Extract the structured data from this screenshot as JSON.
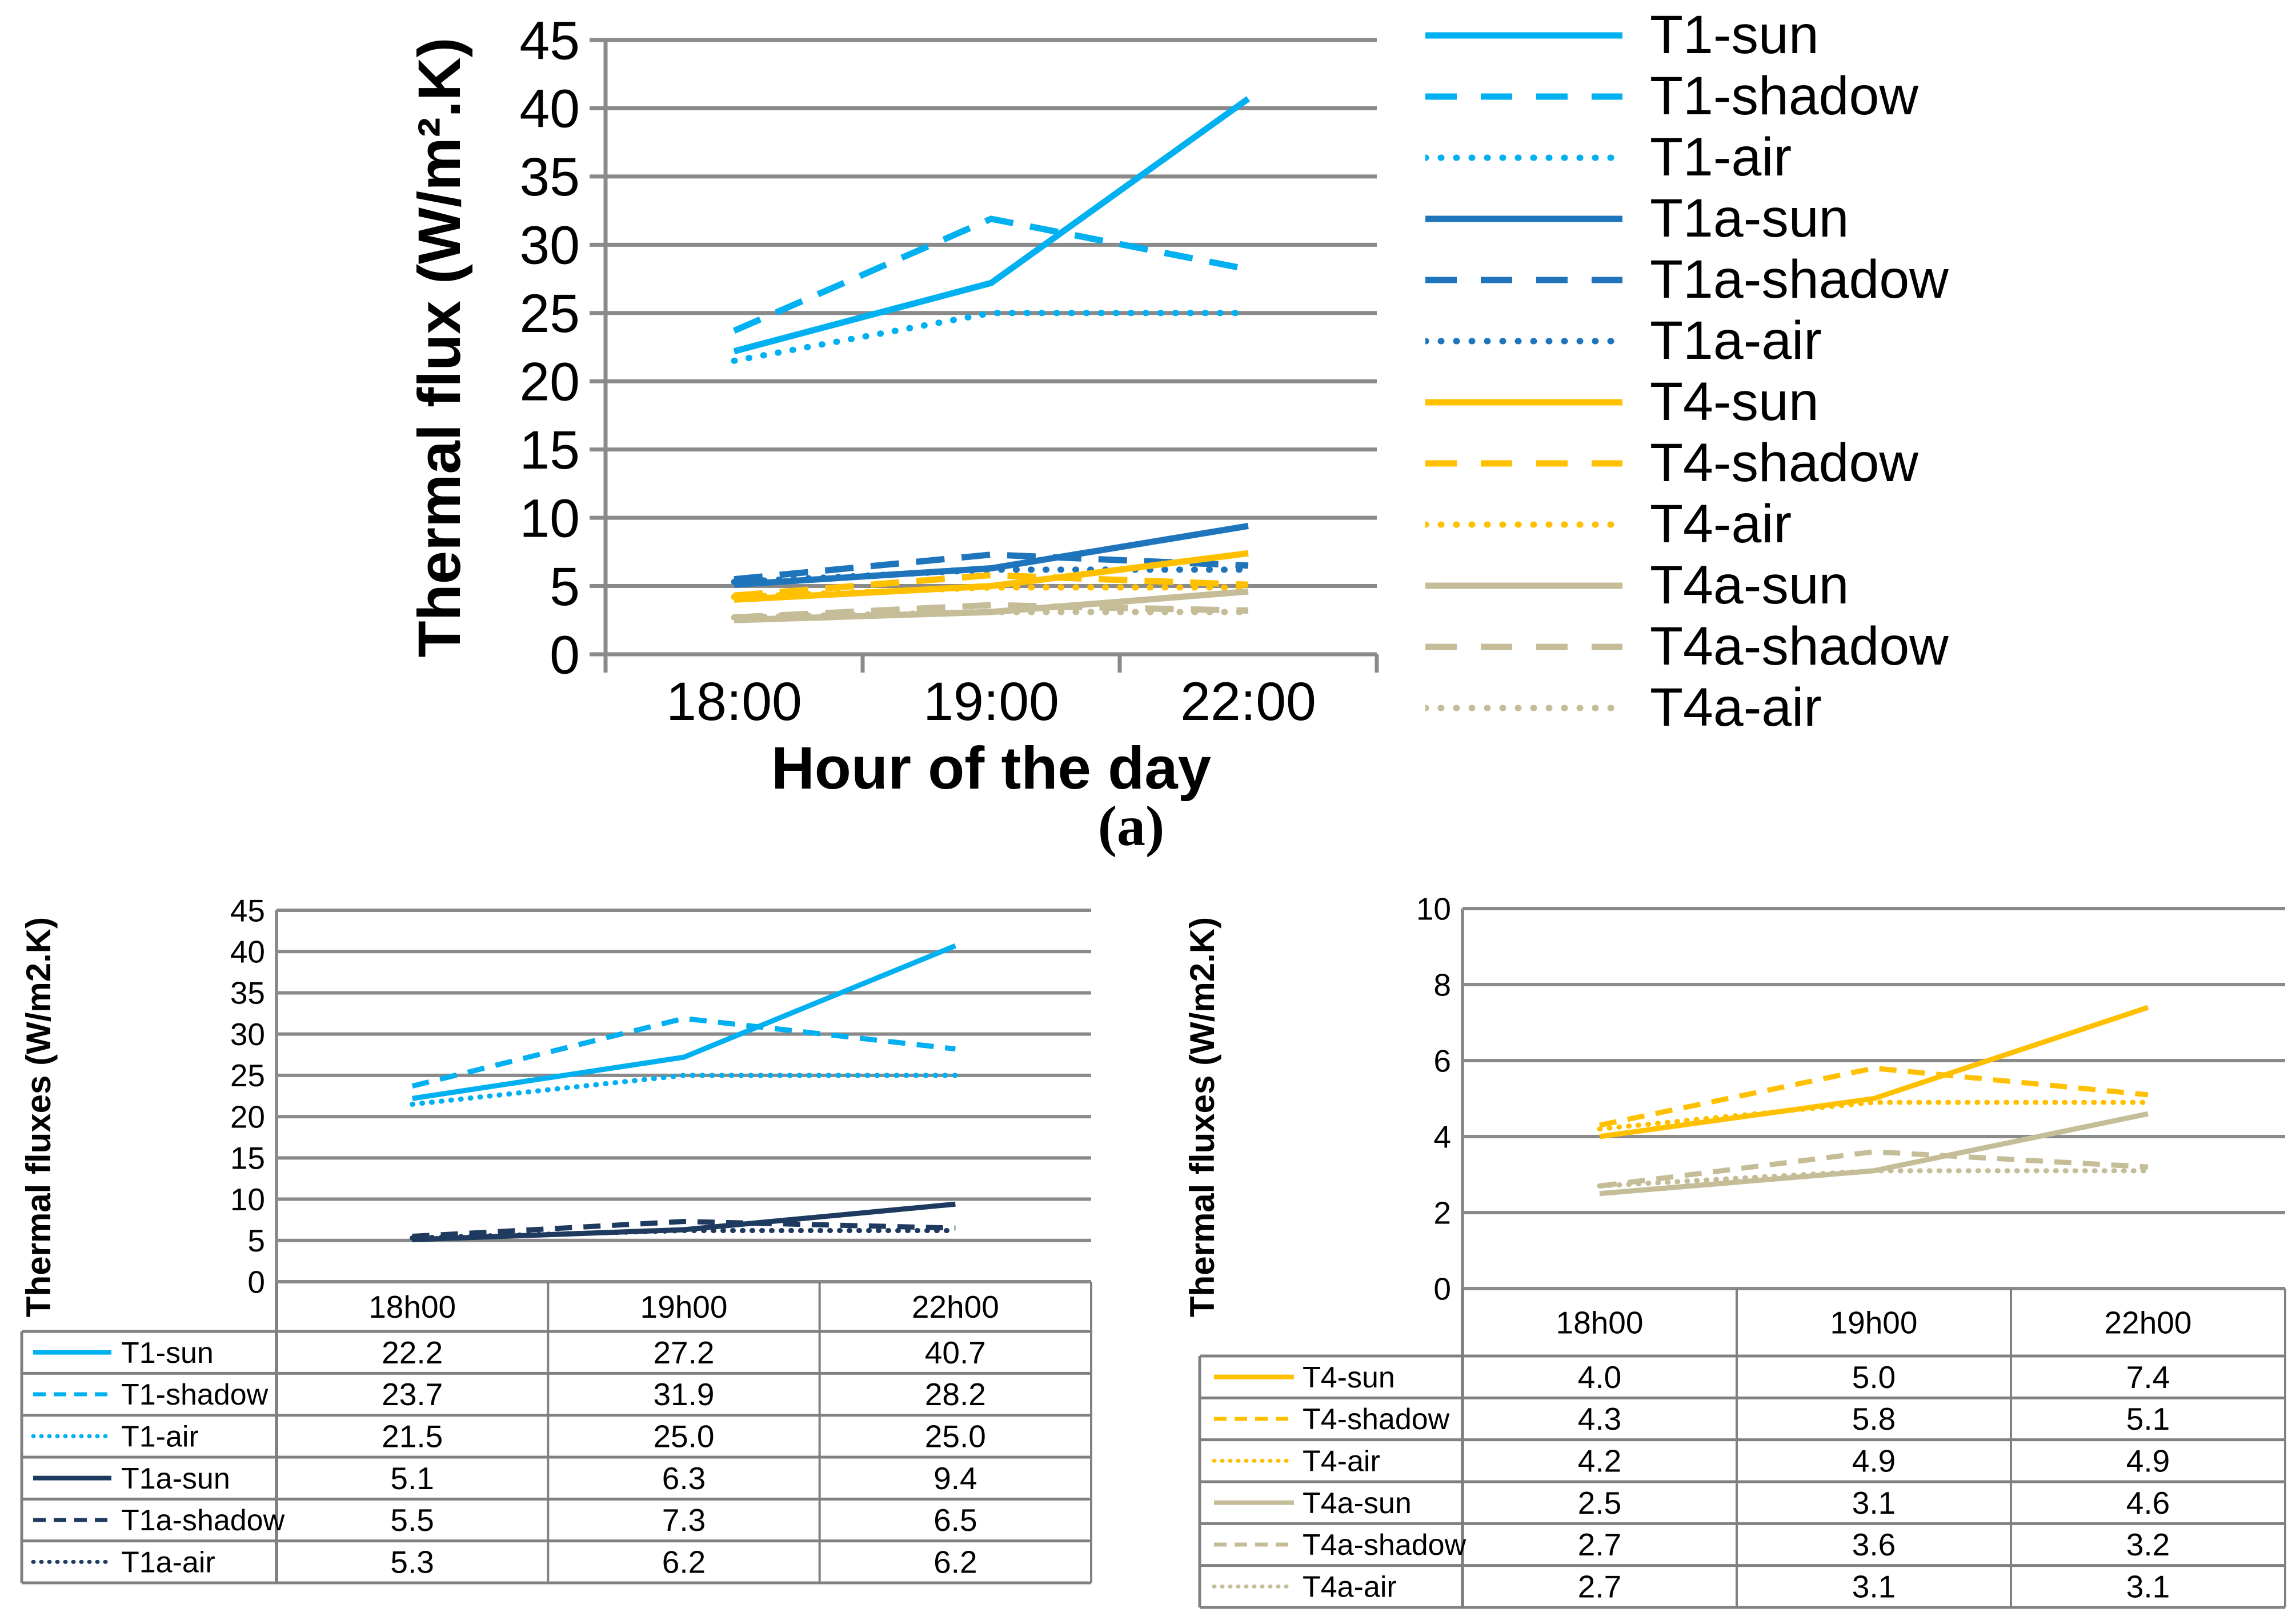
{
  "caption_a": "(a)",
  "colors": {
    "t1": "#00B0F0",
    "t1a_top": "#1F75BC",
    "t1a_table": "#1F3A5F",
    "t4": "#FFC000",
    "t4a": "#C4BD97",
    "grid": "#8A8A8A",
    "table_border": "#808080",
    "text": "#000000"
  },
  "chart_data": [
    {
      "id": "chart-a",
      "type": "line",
      "title": "",
      "xlabel": "Hour of the day",
      "ylabel": "Thermal flux (W/m²().K)",
      "ylabel_display": "Thermal flux (W/m².K)",
      "categories": [
        "18:00",
        "19:00",
        "22:00"
      ],
      "ylim": [
        0,
        45
      ],
      "ytick_step": 5,
      "grid": true,
      "legend_position": "right",
      "series": [
        {
          "name": "T1-sun",
          "color": "#00B0F0",
          "style": "solid",
          "values": [
            22.2,
            27.2,
            40.7
          ]
        },
        {
          "name": "T1-shadow",
          "color": "#00B0F0",
          "style": "dashed",
          "values": [
            23.7,
            31.9,
            28.2
          ]
        },
        {
          "name": "T1-air",
          "color": "#00B0F0",
          "style": "dotted",
          "values": [
            21.5,
            25.0,
            25.0
          ]
        },
        {
          "name": "T1a-sun",
          "color": "#1F75BC",
          "style": "solid",
          "values": [
            5.1,
            6.3,
            9.4
          ]
        },
        {
          "name": "T1a-shadow",
          "color": "#1F75BC",
          "style": "dashed",
          "values": [
            5.5,
            7.3,
            6.5
          ]
        },
        {
          "name": "T1a-air",
          "color": "#1F75BC",
          "style": "dotted",
          "values": [
            5.3,
            6.2,
            6.2
          ]
        },
        {
          "name": "T4-sun",
          "color": "#FFC000",
          "style": "solid",
          "values": [
            4.0,
            5.0,
            7.4
          ]
        },
        {
          "name": "T4-shadow",
          "color": "#FFC000",
          "style": "dashed",
          "values": [
            4.3,
            5.8,
            5.1
          ]
        },
        {
          "name": "T4-air",
          "color": "#FFC000",
          "style": "dotted",
          "values": [
            4.2,
            4.9,
            4.9
          ]
        },
        {
          "name": "T4a-sun",
          "color": "#C4BD97",
          "style": "solid",
          "values": [
            2.5,
            3.1,
            4.6
          ]
        },
        {
          "name": "T4a-shadow",
          "color": "#C4BD97",
          "style": "dashed",
          "values": [
            2.7,
            3.6,
            3.2
          ]
        },
        {
          "name": "T4a-air",
          "color": "#C4BD97",
          "style": "dotted",
          "values": [
            2.7,
            3.1,
            3.1
          ]
        }
      ]
    },
    {
      "id": "chart-b",
      "type": "line",
      "title": "",
      "xlabel": "",
      "ylabel": "Thermal fluxes (W/m2.K)",
      "categories": [
        "18h00",
        "19h00",
        "22h00"
      ],
      "ylim": [
        0,
        45
      ],
      "ytick_step": 5,
      "grid": true,
      "legend_position": "table-left",
      "table_headers": [
        "",
        "18h00",
        "19h00",
        "22h00"
      ],
      "series": [
        {
          "name": "T1-sun",
          "color": "#00B0F0",
          "style": "solid",
          "values": [
            "22.2",
            "27.2",
            "40.7"
          ]
        },
        {
          "name": "T1-shadow",
          "color": "#00B0F0",
          "style": "dashed",
          "values": [
            "23.7",
            "31.9",
            "28.2"
          ]
        },
        {
          "name": "T1-air",
          "color": "#00B0F0",
          "style": "dotted",
          "values": [
            "21.5",
            "25.0",
            "25.0"
          ]
        },
        {
          "name": "T1a-sun",
          "color": "#1F3A5F",
          "style": "solid",
          "values": [
            "5.1",
            "6.3",
            "9.4"
          ]
        },
        {
          "name": "T1a-shadow",
          "color": "#1F3A5F",
          "style": "dashed",
          "values": [
            "5.5",
            "7.3",
            "6.5"
          ]
        },
        {
          "name": "T1a-air",
          "color": "#1F3A5F",
          "style": "dotted",
          "values": [
            "5.3",
            "6.2",
            "6.2"
          ]
        }
      ]
    },
    {
      "id": "chart-c",
      "type": "line",
      "title": "",
      "xlabel": "",
      "ylabel": "Thermal fluxes (W/m2.K)",
      "categories": [
        "18h00",
        "19h00",
        "22h00"
      ],
      "ylim": [
        0,
        10
      ],
      "ytick_step": 2,
      "grid": true,
      "legend_position": "table-left",
      "table_headers": [
        "",
        "18h00",
        "19h00",
        "22h00"
      ],
      "series": [
        {
          "name": "T4-sun",
          "color": "#FFC000",
          "style": "solid",
          "values": [
            "4.0",
            "5.0",
            "7.4"
          ]
        },
        {
          "name": "T4-shadow",
          "color": "#FFC000",
          "style": "dashed",
          "values": [
            "4.3",
            "5.8",
            "5.1"
          ]
        },
        {
          "name": "T4-air",
          "color": "#FFC000",
          "style": "dotted",
          "values": [
            "4.2",
            "4.9",
            "4.9"
          ]
        },
        {
          "name": "T4a-sun",
          "color": "#C4BD97",
          "style": "solid",
          "values": [
            "2.5",
            "3.1",
            "4.6"
          ]
        },
        {
          "name": "T4a-shadow",
          "color": "#C4BD97",
          "style": "dashed",
          "values": [
            "2.7",
            "3.6",
            "3.2"
          ]
        },
        {
          "name": "T4a-air",
          "color": "#C4BD97",
          "style": "dotted",
          "values": [
            "2.7",
            "3.1",
            "3.1"
          ]
        }
      ]
    }
  ]
}
